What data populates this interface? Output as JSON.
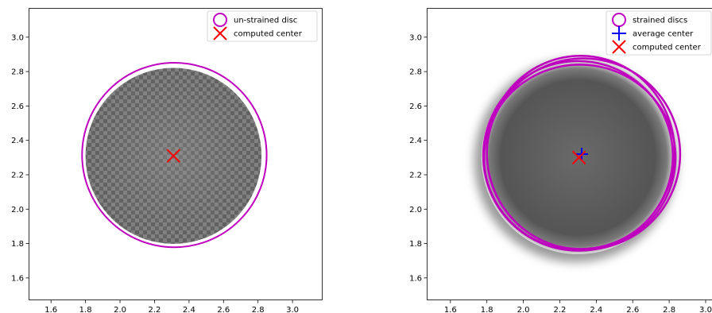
{
  "chart_data": [
    {
      "type": "scatter",
      "panel": "left",
      "title": "",
      "xlabel": "",
      "ylabel": "",
      "xlim": [
        1.47,
        3.17
      ],
      "ylim": [
        1.47,
        3.17
      ],
      "xticks": [
        "1.6",
        "1.8",
        "2.0",
        "2.2",
        "2.4",
        "2.6",
        "2.8",
        "3.0"
      ],
      "yticks": [
        "1.6",
        "1.8",
        "2.0",
        "2.2",
        "2.4",
        "2.6",
        "2.8",
        "3.0"
      ],
      "grid": false,
      "legend_position": "top-right",
      "image": {
        "description_color": "#7a7a7a",
        "center": [
          2.31,
          2.31
        ],
        "radius": 0.51
      },
      "circles": [
        {
          "name": "un-strained disc",
          "center": [
            2.315,
            2.315
          ],
          "rx": 0.535,
          "ry": 0.535,
          "color": "#bf00bf"
        }
      ],
      "markers": [
        {
          "name": "computed center",
          "symbol": "x",
          "x": 2.31,
          "y": 2.31,
          "color": "#ff0000"
        }
      ],
      "legend": [
        {
          "label": "un-strained disc",
          "symbol": "circle",
          "color": "#bf00bf"
        },
        {
          "label": "computed center",
          "symbol": "x",
          "color": "#ff0000"
        }
      ]
    },
    {
      "type": "scatter",
      "panel": "right",
      "title": "",
      "xlabel": "",
      "ylabel": "",
      "xlim": [
        1.47,
        3.17
      ],
      "ylim": [
        1.47,
        3.17
      ],
      "xticks": [
        "1.6",
        "1.8",
        "2.0",
        "2.2",
        "2.4",
        "2.6",
        "2.8",
        "3.0"
      ],
      "yticks": [
        "1.6",
        "1.8",
        "2.0",
        "2.2",
        "2.4",
        "2.6",
        "2.8",
        "3.0"
      ],
      "grid": false,
      "legend_position": "top-right",
      "image": {
        "description_color": "#6e6e6e",
        "center": [
          2.3,
          2.3
        ],
        "radius": 0.53
      },
      "circles": [
        {
          "name": "strained discs",
          "center": [
            2.33,
            2.32
          ],
          "rx": 0.53,
          "ry": 0.525,
          "color": "#bf00bf"
        },
        {
          "name": "strained discs",
          "center": [
            2.3,
            2.31
          ],
          "rx": 0.52,
          "ry": 0.52,
          "color": "#bf00bf"
        },
        {
          "name": "strained discs",
          "center": [
            2.315,
            2.33
          ],
          "rx": 0.515,
          "ry": 0.53,
          "color": "#bf00bf"
        },
        {
          "name": "strained discs",
          "center": [
            2.31,
            2.3
          ],
          "rx": 0.525,
          "ry": 0.51,
          "color": "#bf00bf"
        }
      ],
      "markers": [
        {
          "name": "average center",
          "symbol": "+",
          "x": 2.32,
          "y": 2.32,
          "color": "#0000ff"
        },
        {
          "name": "computed center",
          "symbol": "x",
          "x": 2.305,
          "y": 2.3,
          "color": "#ff0000"
        }
      ],
      "legend": [
        {
          "label": "strained discs",
          "symbol": "circle",
          "color": "#bf00bf"
        },
        {
          "label": "average center",
          "symbol": "plus",
          "color": "#0000ff"
        },
        {
          "label": "computed center",
          "symbol": "x",
          "color": "#ff0000"
        }
      ]
    }
  ]
}
